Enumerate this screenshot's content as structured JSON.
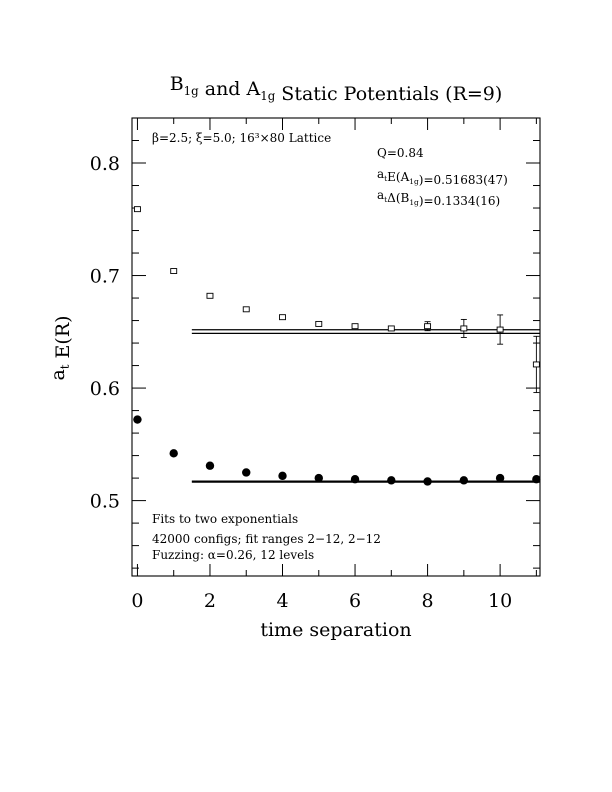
{
  "chart_data": {
    "type": "scatter",
    "title": "B1g and A1g Static Potentials (R=9)",
    "title_parts": [
      {
        "text": "B",
        "sub": "1g"
      },
      {
        "text": " and A",
        "sub": "1g"
      },
      {
        "text": " Static Potentials (R=9)",
        "sub": ""
      }
    ],
    "xlabel": "time separation",
    "ylabel": "a_t E(R)",
    "ylabel_parts": {
      "main": "a",
      "sub": "t",
      "rest": " E(R)"
    },
    "xlim": [
      -0.15,
      11.1
    ],
    "ylim": [
      0.433,
      0.84
    ],
    "x_ticks": [
      0,
      2,
      4,
      6,
      8,
      10
    ],
    "x_tick_labels": [
      "0",
      "2",
      "4",
      "6",
      "8",
      "10"
    ],
    "y_ticks": [
      0.5,
      0.6,
      0.7,
      0.8
    ],
    "y_tick_labels": [
      "0.5",
      "0.6",
      "0.7",
      "0.8"
    ],
    "series": [
      {
        "marker": "open-square",
        "x": [
          0,
          1,
          2,
          3,
          4,
          5,
          6,
          7,
          8,
          9,
          10,
          11
        ],
        "y": [
          0.759,
          0.704,
          0.682,
          0.67,
          0.663,
          0.657,
          0.655,
          0.653,
          0.655,
          0.653,
          0.652,
          0.621
        ],
        "err": [
          0.001,
          0.001,
          0.001,
          0.001,
          0.001,
          0.0015,
          0.0015,
          0.002,
          0.004,
          0.008,
          0.013,
          0.025
        ]
      },
      {
        "marker": "filled-circle",
        "x": [
          0,
          1,
          2,
          3,
          4,
          5,
          6,
          7,
          8,
          9,
          10,
          11
        ],
        "y": [
          0.572,
          0.542,
          0.531,
          0.525,
          0.522,
          0.52,
          0.519,
          0.518,
          0.517,
          0.518,
          0.52,
          0.519
        ],
        "err": [
          0,
          0,
          0,
          0,
          0,
          0,
          0,
          0,
          0,
          0,
          0,
          0
        ]
      }
    ],
    "fits": [
      {
        "x_range": [
          1.5,
          11.1
        ],
        "value": 0.6502,
        "band": [
          0.6486,
          0.6518
        ]
      },
      {
        "x_range": [
          1.5,
          11.1
        ],
        "value": 0.5168,
        "band": [
          0.5164,
          0.5173
        ]
      }
    ],
    "annotations": {
      "lattice": "β=2.5; ξ=5.0; 16³×80 Lattice",
      "q": "Q=0.84",
      "energy_prefix": "a",
      "energy_sub": "t",
      "energy_mid": "E(A",
      "energy_sub2": "1g",
      "energy_value": ")=0.51683(47)",
      "delta_prefix": "a",
      "delta_sub": "t",
      "delta_mid": "Δ(B",
      "delta_sub2": "1g",
      "delta_value": ")=0.1334(16)",
      "fits": "Fits to two exponentials",
      "configs": "42000 configs; fit ranges 2−12, 2−12",
      "fuzzing": "Fuzzing: α=0.26, 12 levels"
    }
  }
}
